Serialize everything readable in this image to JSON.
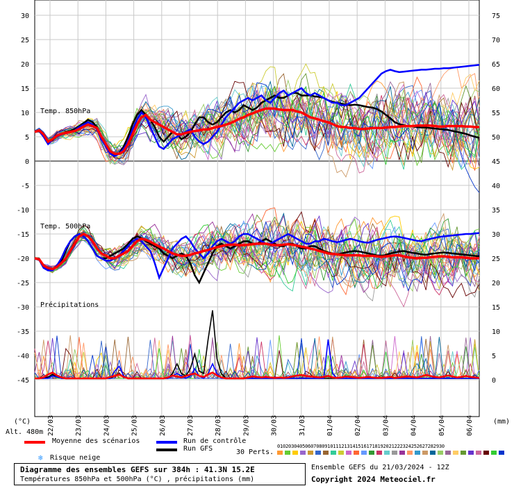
{
  "chart_data": {
    "type": "line",
    "title": "Diagramme des ensembles GEFS sur 384h : 41.3N 15.2E",
    "subtitle": "Températures 850hPa et 500hPa (°C) , précipitations (mm)",
    "left_axis_ticks": [
      "30",
      "25",
      "20",
      "15",
      "10",
      "5",
      "0",
      "-5",
      "-10",
      "-15",
      "-20",
      "-25",
      "-30",
      "-35",
      "-40",
      "-45"
    ],
    "right_axis_ticks": [
      "75",
      "70",
      "65",
      "60",
      "55",
      "50",
      "45",
      "40",
      "35",
      "30",
      "25",
      "20",
      "15",
      "10",
      "5",
      "0"
    ],
    "left_unit": "(°C)",
    "right_unit": "(mm)",
    "altitude": "Alt. 480m",
    "panel_labels": {
      "t850": "Temp. 850hPa",
      "t500": "Temp. 500hPa",
      "precip": "Précipitations"
    },
    "dates": [
      "22/03",
      "23/03",
      "24/03",
      "25/03",
      "26/03",
      "27/03",
      "28/03",
      "29/03",
      "30/03",
      "31/03",
      "01/04",
      "02/04",
      "03/04",
      "04/04",
      "05/04",
      "06/04"
    ],
    "time_step_hours": 6,
    "series": [
      {
        "name": "Moyenne des scénarios",
        "color": "#ff0000",
        "role": "mean",
        "t850": [
          6,
          6.3,
          5.5,
          4,
          4.5,
          5.2,
          5.6,
          5.8,
          6,
          6.2,
          6.6,
          7.1,
          7.5,
          7.2,
          6.8,
          5,
          3.5,
          2,
          1.5,
          1.5,
          2,
          3.5,
          5.5,
          7.5,
          9,
          9.5,
          8.5,
          8,
          7.5,
          7,
          6.5,
          6,
          5.5,
          5.5,
          5.8,
          6,
          6.2,
          6.3,
          6.5,
          6.5,
          6.8,
          7,
          7.2,
          7.5,
          7.8,
          8.2,
          8.7,
          9,
          9.5,
          9.8,
          10.2,
          10.5,
          10.8,
          10.8,
          10.8,
          10.6,
          10.5,
          10.5,
          10.5,
          10.2,
          10,
          9.5,
          9,
          8.8,
          8.5,
          8.2,
          8,
          7.6,
          7.2,
          7,
          7,
          6.8,
          6.8,
          6.6,
          6.6,
          6.7,
          6.8,
          6.8,
          6.8,
          6.9,
          7,
          7,
          7.1,
          7.2,
          7.2,
          7.2,
          7.3,
          7.3,
          7.3,
          7.3,
          7.2,
          7.1,
          7.1,
          7.2,
          7.2,
          7.2,
          7.2,
          7.1,
          7.1,
          7,
          7
        ],
        "t500": [
          -20,
          -20.2,
          -21.5,
          -22,
          -22.2,
          -21.8,
          -21,
          -20,
          -18.5,
          -17,
          -15.5,
          -15,
          -15.5,
          -16.5,
          -18,
          -19,
          -19.5,
          -20,
          -20,
          -19.5,
          -19,
          -18.5,
          -17.5,
          -16.5,
          -16,
          -16.2,
          -16.6,
          -17.1,
          -17.6,
          -18,
          -18.5,
          -19,
          -19.3,
          -19.5,
          -19.5,
          -19.3,
          -19,
          -18.8,
          -18.5,
          -18.3,
          -18,
          -17.7,
          -17.5,
          -17.3,
          -17.2,
          -17.2,
          -17.3,
          -17.3,
          -17.2,
          -17.1,
          -17,
          -17,
          -17,
          -17.2,
          -17.3,
          -17.3,
          -17.2,
          -17.1,
          -17.2,
          -17.4,
          -17.6,
          -17.8,
          -18,
          -18.2,
          -18.5,
          -18.7,
          -19,
          -19.1,
          -19.2,
          -19.3,
          -19.4,
          -19.4,
          -19.4,
          -19.4,
          -19.5,
          -19.5,
          -19.5,
          -19.6,
          -19.7,
          -19.6,
          -19.5,
          -19.4,
          -19.4,
          -19.6,
          -19.8,
          -19.9,
          -20,
          -19.9,
          -19.9,
          -19.8,
          -19.7,
          -19.6,
          -19.6,
          -19.7,
          -19.8,
          -19.8,
          -19.8,
          -19.9,
          -20,
          -20,
          -20
        ],
        "precip": [
          0,
          0,
          0.2,
          0.8,
          1.2,
          0.6,
          0.2,
          0,
          0,
          0,
          0,
          0,
          0,
          0,
          0,
          0,
          0,
          0.3,
          0.5,
          0.8,
          0.3,
          0,
          0,
          0,
          0,
          0,
          0,
          0,
          0,
          0,
          0.2,
          0.6,
          0.4,
          0.2,
          0.5,
          0.8,
          1,
          0.5,
          0.3,
          0.8,
          1.2,
          0.6,
          0.2,
          0,
          0,
          0,
          0,
          0,
          0.2,
          0.4,
          0.3,
          0.2,
          0.3,
          0.2,
          0.1,
          0.2,
          0.1,
          0.2,
          0.4,
          0.6,
          0.7,
          0.5,
          0.4,
          0.3,
          0.2,
          0.3,
          0.5,
          0.2,
          0.1,
          0.2,
          0.4,
          0.3,
          0.2,
          0.1,
          0.2,
          0.3,
          0.2,
          0.1,
          0.1,
          0.2,
          0.3,
          0.1,
          0.2,
          0.3,
          0.4,
          0.3,
          0.2,
          0.4,
          0.7,
          0.5,
          0.3,
          0.2,
          0.4,
          0.6,
          0.4,
          0.2,
          0.3,
          0.5,
          0.3,
          0.2,
          0.1
        ]
      },
      {
        "name": "Run de contrôle",
        "color": "#0000ff",
        "role": "control",
        "t850": [
          6,
          6.2,
          5,
          3.5,
          4.5,
          5,
          5.5,
          5.8,
          6,
          6.3,
          7,
          7.5,
          8,
          7.5,
          6.5,
          4.5,
          3,
          1.5,
          1,
          1.5,
          2.5,
          4,
          6.5,
          8.5,
          10,
          9,
          7,
          5,
          3,
          2.5,
          3.5,
          4.5,
          5,
          5.5,
          6,
          6.5,
          5,
          4,
          3.5,
          4,
          5,
          6,
          7.5,
          9,
          10,
          11,
          12,
          12.5,
          13,
          12.5,
          13,
          13.5,
          12.5,
          12,
          13,
          14,
          14.5,
          13.5,
          14,
          14.5,
          15,
          14,
          13.5,
          14,
          13.5,
          13,
          12.5,
          12,
          12,
          11.5,
          11.5,
          12,
          12.5,
          13,
          14,
          15,
          16,
          17,
          18,
          18.5,
          18.8,
          18.5,
          18.3,
          18.4,
          18.5,
          18.6,
          18.7,
          18.8,
          18.8,
          18.9,
          19,
          19,
          19.1,
          19.1,
          19.2,
          19.3,
          19.4,
          19.5,
          19.6,
          19.7,
          19.8
        ],
        "t500": [
          -20,
          -20.3,
          -22,
          -22.5,
          -22.5,
          -21.5,
          -20,
          -18,
          -16.5,
          -15.5,
          -15,
          -15.5,
          -16.5,
          -18,
          -19.5,
          -20,
          -20.5,
          -20.5,
          -20,
          -19.5,
          -18.5,
          -17.5,
          -16.5,
          -16,
          -16.5,
          -17.5,
          -18.5,
          -21,
          -24,
          -22,
          -20,
          -18,
          -17,
          -16,
          -15.5,
          -16.5,
          -18,
          -19,
          -20,
          -19,
          -17.5,
          -16.5,
          -16,
          -16.5,
          -17,
          -16.5,
          -15.5,
          -15,
          -15,
          -15.5,
          -16,
          -16.5,
          -17,
          -17,
          -16.5,
          -16,
          -15.5,
          -15,
          -15.5,
          -16,
          -16.5,
          -17,
          -17,
          -16.5,
          -16.5,
          -16,
          -16.2,
          -16.5,
          -16.7,
          -16.5,
          -16.2,
          -16,
          -16.2,
          -16.5,
          -16.7,
          -16.8,
          -16.5,
          -16.2,
          -16,
          -15.8,
          -15.6,
          -15.5,
          -15.6,
          -15.8,
          -16,
          -16.2,
          -16.4,
          -16.5,
          -16.2,
          -16,
          -15.8,
          -15.6,
          -15.5,
          -15.4,
          -15.3,
          -15.2,
          -15.1,
          -15,
          -15,
          -14.9,
          -14.8
        ],
        "precip": [
          0,
          0,
          0,
          0,
          0.5,
          0.3,
          0,
          0,
          0,
          0,
          0,
          0,
          0,
          0,
          0,
          0,
          0,
          0,
          1.5,
          2.5,
          0.5,
          0,
          0,
          0,
          0,
          0,
          0,
          0,
          0,
          0,
          0,
          0.5,
          1,
          0.5,
          0,
          0.5,
          2,
          0.5,
          0,
          1,
          3,
          1,
          0,
          0,
          0,
          0,
          0,
          0,
          0,
          0,
          0,
          0,
          0,
          0,
          0,
          0,
          0,
          0,
          0,
          0,
          0,
          0,
          0,
          0,
          0,
          0,
          8,
          1,
          0,
          0,
          0,
          0,
          0,
          0,
          0,
          0,
          0,
          0,
          0,
          0,
          0,
          0,
          0,
          0,
          0,
          0,
          0,
          0,
          0,
          0,
          0,
          0,
          0,
          0,
          0,
          0,
          0,
          0,
          0,
          0,
          0
        ]
      },
      {
        "name": "Run GFS",
        "color": "#000000",
        "role": "oper",
        "t850": [
          6,
          6.1,
          5.2,
          3.8,
          4.3,
          5.1,
          5.6,
          5.9,
          6.2,
          6.6,
          7.2,
          7.8,
          8.5,
          8,
          7,
          5,
          3,
          1.8,
          1.2,
          1.6,
          3,
          5,
          7.5,
          9.5,
          10.5,
          9.5,
          8.5,
          7,
          5,
          4,
          5,
          6,
          5.5,
          4.5,
          5,
          6,
          7.5,
          9,
          9,
          8,
          7.5,
          8,
          9,
          10,
          10.5,
          10,
          10.5,
          11.5,
          11,
          10.5,
          11,
          12,
          12.5,
          13,
          13.5,
          13,
          13,
          13.5,
          14,
          14,
          13.5,
          13.5,
          13.5,
          13.3,
          13.2,
          13,
          12.5,
          12.2,
          12,
          11.8,
          11.6,
          11.5,
          11.6,
          11.5,
          11.3,
          11.1,
          11,
          10.7,
          10.2,
          9.5,
          8.8,
          8,
          7.6,
          7.4,
          7.2,
          7.1,
          7,
          6.9,
          6.9,
          6.8,
          6.7,
          6.6,
          6.5,
          6.4,
          6.2,
          6,
          5.8,
          5.6,
          5.3,
          5,
          4.8
        ],
        "t500": [
          -20,
          -20.2,
          -21.8,
          -22.3,
          -22.3,
          -21.5,
          -20.5,
          -18.5,
          -16.5,
          -15.5,
          -15,
          -15.5,
          -16.5,
          -18,
          -19.5,
          -20,
          -20,
          -19.5,
          -19,
          -18.5,
          -18,
          -17,
          -16,
          -15.5,
          -15.8,
          -16.5,
          -17,
          -17.5,
          -18,
          -19,
          -19.5,
          -20,
          -19.5,
          -19,
          -19.5,
          -21,
          -23.5,
          -25,
          -23,
          -21,
          -19,
          -17.5,
          -17,
          -17.5,
          -18,
          -17.5,
          -17,
          -16.5,
          -16.5,
          -17,
          -17,
          -16.5,
          -16,
          -16.5,
          -17,
          -17.5,
          -17.5,
          -17,
          -17,
          -17.5,
          -18,
          -18,
          -17.5,
          -17.5,
          -18,
          -18.5,
          -18.8,
          -19,
          -19.2,
          -19,
          -18.8,
          -18.6,
          -18.5,
          -18.6,
          -18.8,
          -19,
          -19.2,
          -19.4,
          -19.5,
          -19.3,
          -19,
          -18.8,
          -18.6,
          -18.5,
          -18.7,
          -18.9,
          -19,
          -19.2,
          -19.3,
          -19.1,
          -19,
          -18.9,
          -18.8,
          -18.9,
          -19,
          -19.1,
          -19.2,
          -19.3,
          -19.4,
          -19.5,
          -19.6
        ],
        "precip": [
          0,
          0,
          0,
          0.3,
          0.8,
          0.3,
          0,
          0,
          0,
          0,
          0,
          0,
          0,
          0,
          0,
          0,
          0,
          0,
          0.5,
          1,
          0.3,
          0,
          0,
          0,
          0,
          0,
          0,
          0,
          0,
          0,
          0,
          1,
          3,
          1,
          0.5,
          2,
          5,
          1.5,
          1,
          8,
          14,
          4,
          1,
          0,
          0,
          0,
          0,
          0,
          0,
          0,
          0,
          0,
          0,
          0,
          0,
          0,
          0,
          0,
          0,
          0,
          0,
          0,
          0,
          0,
          0,
          0,
          0,
          0,
          0,
          0,
          0,
          0,
          0,
          0,
          0,
          0,
          0,
          0,
          0,
          0,
          0,
          0,
          0,
          0,
          0,
          0,
          0,
          0,
          0,
          0,
          0,
          0,
          0,
          0,
          0,
          0,
          0,
          0,
          0,
          0,
          0
        ]
      }
    ],
    "ensemble_members": 30,
    "member_labels": [
      "01",
      "02",
      "03",
      "04",
      "05",
      "06",
      "07",
      "08",
      "09",
      "10",
      "11",
      "12",
      "13",
      "14",
      "15",
      "16",
      "17",
      "18",
      "19",
      "20",
      "21",
      "22",
      "23",
      "24",
      "25",
      "26",
      "27",
      "28",
      "29",
      "30"
    ],
    "member_colors": [
      "#ff9933",
      "#66cc33",
      "#ffcc00",
      "#9966cc",
      "#cc9933",
      "#3366cc",
      "#996633",
      "#33cc99",
      "#cccc33",
      "#cc66cc",
      "#ff6633",
      "#6699ff",
      "#339933",
      "#cc3366",
      "#66cccc",
      "#999999",
      "#993399",
      "#ff9966",
      "#3399cc",
      "#cc9966",
      "#006699",
      "#99cc66",
      "#996699",
      "#ffcc66",
      "#669933",
      "#6633cc",
      "#cc6699",
      "#660000",
      "#33cc33",
      "#0033cc"
    ]
  },
  "legend": {
    "mean": "Moyenne des scénarios",
    "control": "Run de contrôle",
    "oper": "Run GFS",
    "perts": "30 Perts.",
    "snow": "Risque neige",
    "snow_icon": "snowflake-icon"
  },
  "footer": {
    "title": "Diagramme des ensembles GEFS sur 384h : 41.3N 15.2E",
    "subtitle": "Températures 850hPa et 500hPa (°C) , précipitations (mm)",
    "ensemble": "Ensemble GEFS du 21/03/2024 - 12Z",
    "copyright": "Copyright 2024 Meteociel.fr"
  }
}
